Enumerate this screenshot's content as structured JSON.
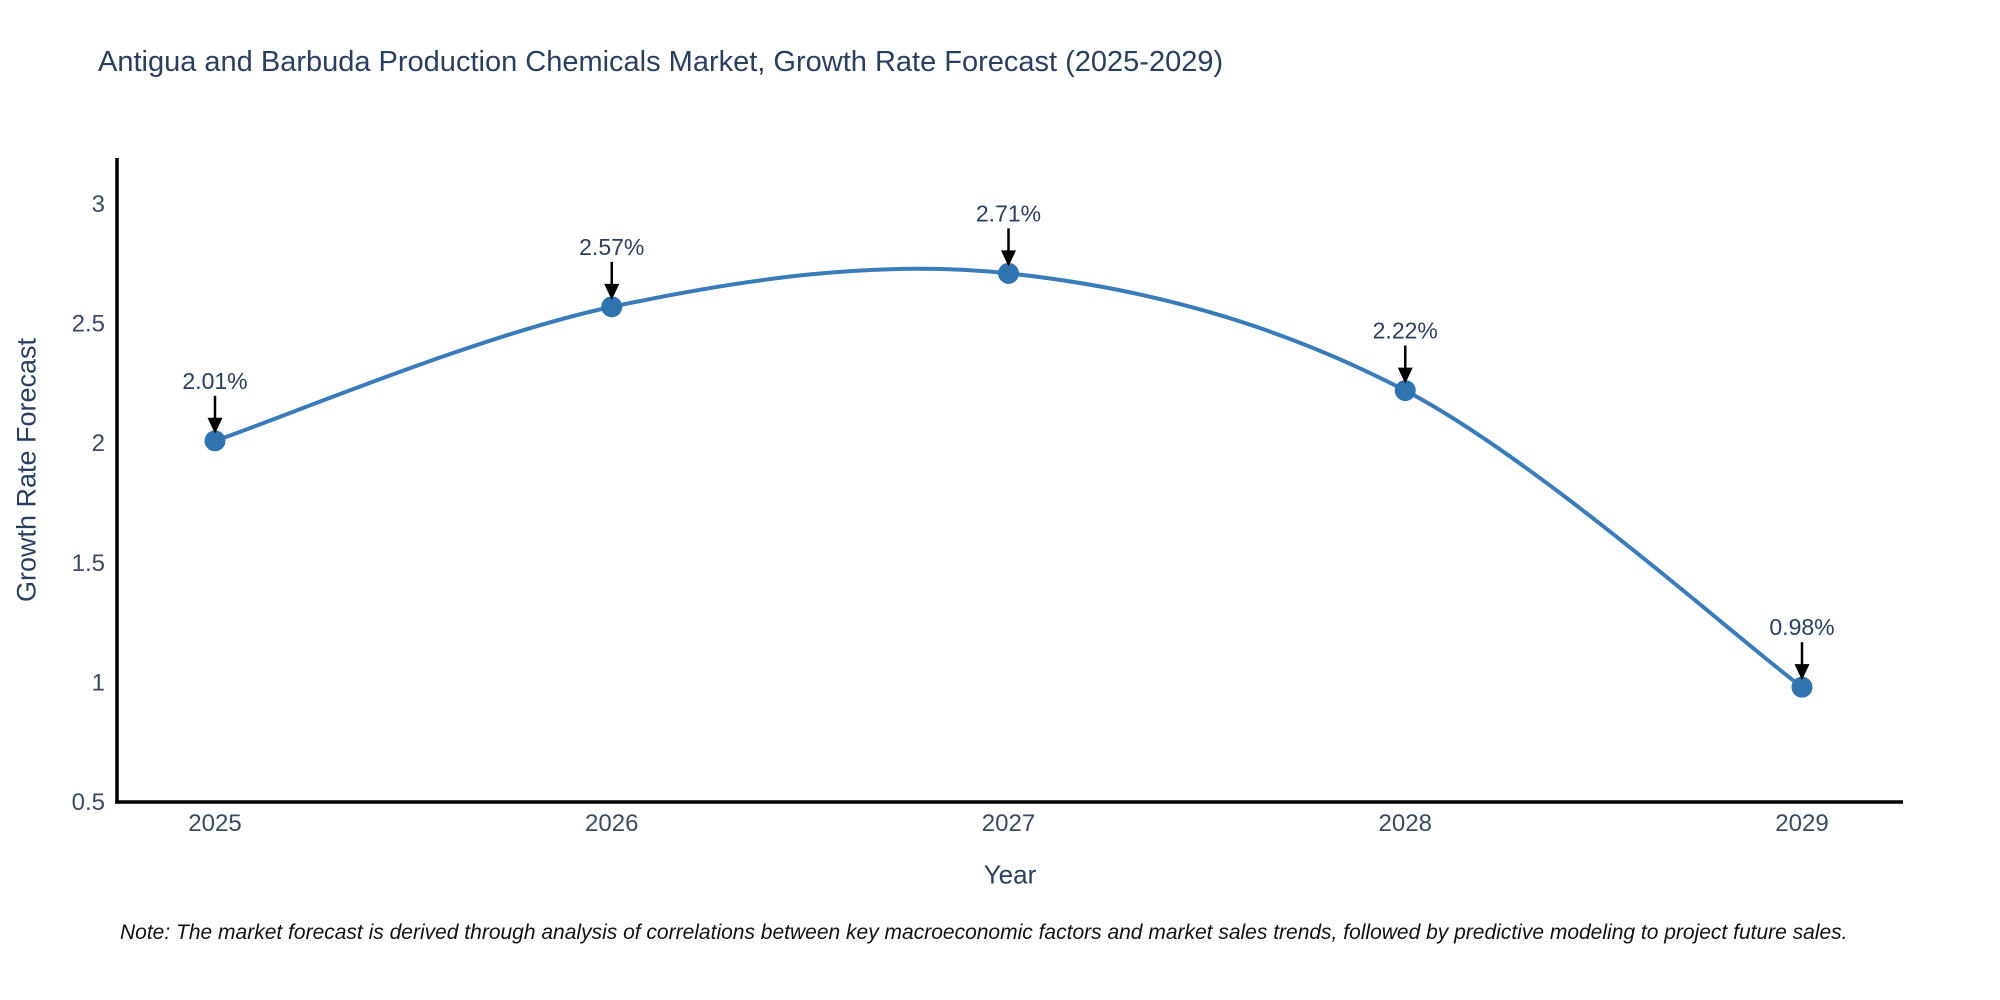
{
  "chart_data": {
    "type": "line",
    "title": "Antigua and Barbuda Production Chemicals Market, Growth Rate Forecast (2025-2029)",
    "xlabel": "Year",
    "ylabel": "Growth Rate Forecast",
    "x": [
      2025,
      2026,
      2027,
      2028,
      2029
    ],
    "series": [
      {
        "name": "Growth Rate Forecast",
        "values": [
          2.01,
          2.57,
          2.71,
          2.22,
          0.98
        ],
        "point_labels": [
          "2.01%",
          "2.57%",
          "2.71%",
          "2.22%",
          "0.98%"
        ]
      }
    ],
    "ylim": [
      0.5,
      3
    ],
    "yticks": [
      0.5,
      1,
      1.5,
      2,
      2.5,
      3
    ],
    "grid": false,
    "legend_position": "none",
    "line_color": "#3a7cb9",
    "marker_color": "#2f73af",
    "axis_color": "#000000",
    "tick_color": "#3b4a63",
    "annotation_text_color": "#2a3f5f",
    "annotation_arrow_color": "#000000"
  },
  "note": "Note: The market forecast is derived through analysis of correlations between key macroeconomic factors and market sales trends, followed by predictive modeling to project future sales."
}
